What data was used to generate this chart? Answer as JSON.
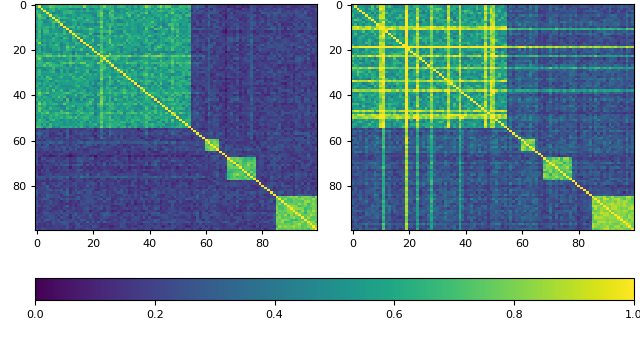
{
  "n": 100,
  "colormap": "viridis",
  "vmin": 0.0,
  "vmax": 1.0,
  "colorbar_ticks": [
    0.0,
    0.2,
    0.4,
    0.6,
    0.8,
    1.0
  ],
  "colorbar_ticklabels": [
    "0.0",
    "0.2",
    "0.4",
    "0.6",
    "0.8",
    "1.0"
  ],
  "axis_ticks": [
    0,
    20,
    40,
    60,
    80
  ],
  "figsize": [
    6.4,
    3.62
  ],
  "dpi": 100,
  "seed1": 7,
  "seed2": 13,
  "class_boundaries": [
    0,
    10,
    55,
    62,
    70,
    78,
    87,
    100
  ],
  "bg_low": 0.1,
  "bg_high": 0.35
}
